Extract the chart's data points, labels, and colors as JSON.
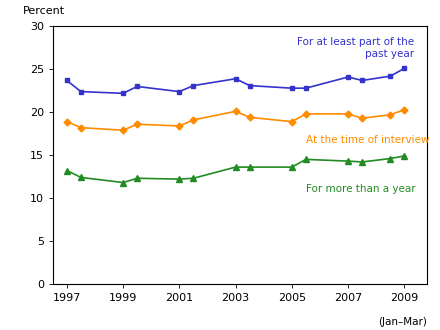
{
  "years": [
    1997,
    1997.5,
    1999,
    1999.5,
    2001,
    2001.5,
    2003,
    2003.5,
    2005,
    2005.5,
    2007,
    2007.5,
    2008.5,
    2009
  ],
  "blue_label_line1": "For at least part of the",
  "blue_label_line2": "past year",
  "orange_label": "At the time of interview",
  "green_label": "For more than a year",
  "blue_data": [
    23.7,
    22.4,
    22.2,
    23.0,
    22.4,
    23.1,
    23.9,
    23.1,
    22.8,
    22.8,
    24.1,
    23.7,
    24.2,
    25.1
  ],
  "orange_data": [
    18.9,
    18.2,
    17.9,
    18.6,
    18.4,
    19.1,
    20.1,
    19.4,
    18.9,
    19.8,
    19.8,
    19.3,
    19.7,
    20.3
  ],
  "green_data": [
    13.2,
    12.4,
    11.8,
    12.3,
    12.2,
    12.3,
    13.6,
    13.6,
    13.6,
    14.5,
    14.3,
    14.2,
    14.6,
    14.9
  ],
  "blue_color": "#3333cc",
  "orange_color": "#ff8c00",
  "green_color": "#228B22",
  "ylabel": "Percent",
  "xlim": [
    1996.5,
    2009.8
  ],
  "ylim": [
    0,
    30
  ],
  "yticks": [
    0,
    5,
    10,
    15,
    20,
    25,
    30
  ],
  "xticks": [
    1997,
    1999,
    2001,
    2003,
    2005,
    2007,
    2009
  ],
  "xlabel_note": "(Jan–Mar)",
  "bg_color": "#ffffff"
}
